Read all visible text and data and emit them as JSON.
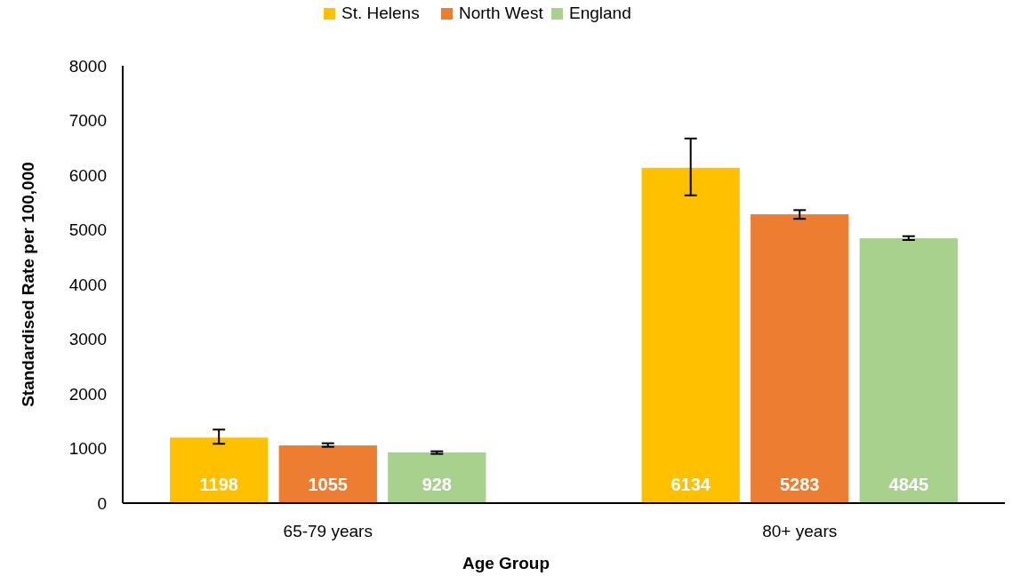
{
  "chart_data": {
    "type": "bar",
    "xlabel": "Age Group",
    "ylabel": "Standardised Rate per 100,000",
    "categories": [
      "65-79 years",
      "80+ years"
    ],
    "series": [
      {
        "name": "St. Helens",
        "color": "#ffc000",
        "values": [
          1198,
          6134
        ],
        "errors": [
          [
            1085,
            1345
          ],
          [
            5630,
            6670
          ]
        ]
      },
      {
        "name": "North West",
        "color": "#ed7d31",
        "values": [
          1055,
          5283
        ],
        "errors": [
          [
            1030,
            1095
          ],
          [
            5200,
            5360
          ]
        ]
      },
      {
        "name": "England",
        "color": "#a9d18e",
        "values": [
          928,
          4845
        ],
        "errors": [
          [
            900,
            948
          ],
          [
            4813,
            4883
          ]
        ]
      }
    ],
    "ylim": [
      0,
      8000
    ],
    "yticks": [
      0,
      1000,
      2000,
      3000,
      4000,
      5000,
      6000,
      7000,
      8000
    ],
    "grid": false,
    "legend": "top",
    "data_labels": true
  }
}
